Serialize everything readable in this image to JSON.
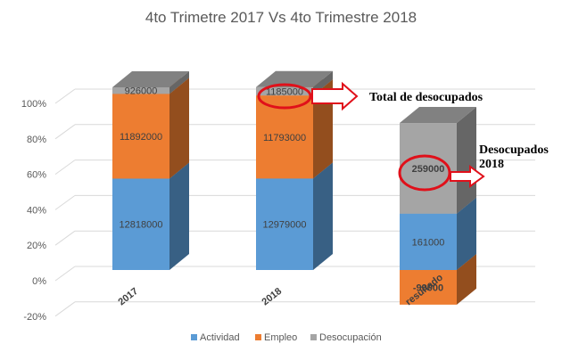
{
  "chart_data": {
    "type": "bar",
    "stacked": "percent",
    "three_d": true,
    "title": "4to Trimetre 2017 Vs 4to Trimestre 2018",
    "xlabel": "",
    "ylabel": "",
    "categories": [
      "2017",
      "2018",
      "resultado"
    ],
    "y_ticks": [
      "-20%",
      "0%",
      "20%",
      "40%",
      "60%",
      "80%",
      "100%"
    ],
    "ylim": [
      -0.2,
      1.0
    ],
    "grid": true,
    "legend_position": "bottom",
    "series": [
      {
        "name": "Actividad",
        "values": [
          12818000,
          12979000,
          161000
        ],
        "labels": [
          "12818000",
          "12979000",
          "161000"
        ],
        "fractions": [
          0.5152,
          0.5157,
          0.3178
        ],
        "color": "#5b9bd5"
      },
      {
        "name": "Empleo",
        "values": [
          11892000,
          11793000,
          -99000
        ],
        "labels": [
          "11892000",
          "11793000",
          "-99000"
        ],
        "fractions": [
          0.478,
          0.4686,
          -0.1954
        ],
        "color": "#ed7d31"
      },
      {
        "name": "Desocupación",
        "values": [
          926000,
          1185000,
          259000
        ],
        "labels": [
          "926000",
          "1185000",
          "259000"
        ],
        "fractions": [
          0.0372,
          0.0471,
          0.5112
        ],
        "color": "#a5a5a5"
      }
    ]
  },
  "annotations": {
    "total_desocupados": "Total de desocupados",
    "desocupados_2018_line1": "Desocupados",
    "desocupados_2018_line2": "2018"
  }
}
